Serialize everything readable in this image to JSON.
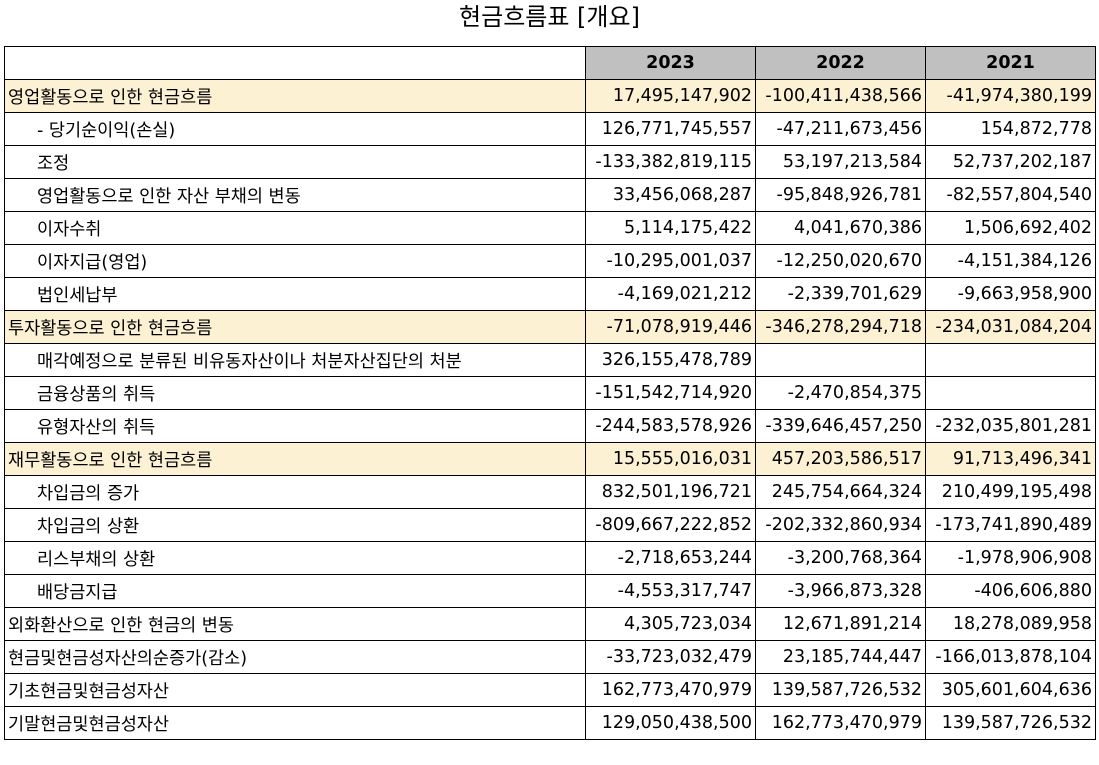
{
  "title": "현금흐름표 [개요]",
  "columns": [
    "2023",
    "2022",
    "2021"
  ],
  "rows": [
    {
      "label": "영업활동으로 인한 현금흐름",
      "section": true,
      "values": [
        "17,495,147,902",
        "-100,411,438,566",
        "-41,974,380,199"
      ]
    },
    {
      "label": "- 당기순이익(손실)",
      "sub": true,
      "values": [
        "126,771,745,557",
        "-47,211,673,456",
        "154,872,778"
      ]
    },
    {
      "label": "조정",
      "sub": true,
      "values": [
        "-133,382,819,115",
        "53,197,213,584",
        "52,737,202,187"
      ]
    },
    {
      "label": "영업활동으로 인한 자산 부채의 변동",
      "sub": true,
      "values": [
        "33,456,068,287",
        "-95,848,926,781",
        "-82,557,804,540"
      ]
    },
    {
      "label": "이자수취",
      "sub": true,
      "values": [
        "5,114,175,422",
        "4,041,670,386",
        "1,506,692,402"
      ]
    },
    {
      "label": "이자지급(영업)",
      "sub": true,
      "values": [
        "-10,295,001,037",
        "-12,250,020,670",
        "-4,151,384,126"
      ]
    },
    {
      "label": "법인세납부",
      "sub": true,
      "values": [
        "-4,169,021,212",
        "-2,339,701,629",
        "-9,663,958,900"
      ]
    },
    {
      "label": "투자활동으로 인한 현금흐름",
      "section": true,
      "values": [
        "-71,078,919,446",
        "-346,278,294,718",
        "-234,031,084,204"
      ]
    },
    {
      "label": "매각예정으로 분류된 비유동자산이나 처분자산집단의 처분",
      "sub": true,
      "values": [
        "326,155,478,789",
        "",
        ""
      ]
    },
    {
      "label": "금융상품의 취득",
      "sub": true,
      "values": [
        "-151,542,714,920",
        "-2,470,854,375",
        ""
      ]
    },
    {
      "label": "유형자산의 취득",
      "sub": true,
      "values": [
        "-244,583,578,926",
        "-339,646,457,250",
        "-232,035,801,281"
      ]
    },
    {
      "label": "재무활동으로 인한 현금흐름",
      "section": true,
      "values": [
        "15,555,016,031",
        "457,203,586,517",
        "91,713,496,341"
      ]
    },
    {
      "label": "차입금의 증가",
      "sub": true,
      "values": [
        "832,501,196,721",
        "245,754,664,324",
        "210,499,195,498"
      ]
    },
    {
      "label": "차입금의 상환",
      "sub": true,
      "values": [
        "-809,667,222,852",
        "-202,332,860,934",
        "-173,741,890,489"
      ]
    },
    {
      "label": "리스부채의 상환",
      "sub": true,
      "values": [
        "-2,718,653,244",
        "-3,200,768,364",
        "-1,978,906,908"
      ]
    },
    {
      "label": "배당금지급",
      "sub": true,
      "values": [
        "-4,553,317,747",
        "-3,966,873,328",
        "-406,606,880"
      ]
    },
    {
      "label": "외화환산으로 인한 현금의 변동",
      "values": [
        "4,305,723,034",
        "12,671,891,214",
        "18,278,089,958"
      ]
    },
    {
      "label": "현금및현금성자산의순증가(감소)",
      "values": [
        "-33,723,032,479",
        "23,185,744,447",
        "-166,013,878,104"
      ]
    },
    {
      "label": "기초현금및현금성자산",
      "values": [
        "162,773,470,979",
        "139,587,726,532",
        "305,601,604,636"
      ]
    },
    {
      "label": "기말현금및현금성자산",
      "values": [
        "129,050,438,500",
        "162,773,470,979",
        "139,587,726,532"
      ]
    }
  ]
}
